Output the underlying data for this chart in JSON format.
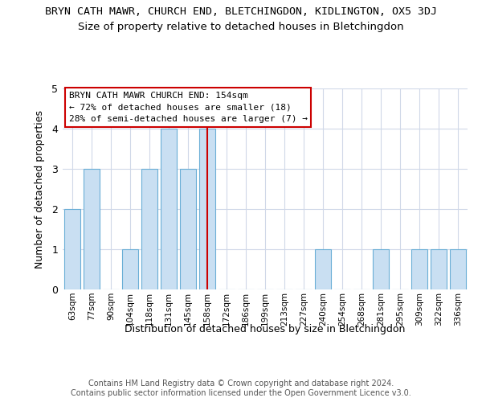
{
  "title": "BRYN CATH MAWR, CHURCH END, BLETCHINGDON, KIDLINGTON, OX5 3DJ",
  "subtitle": "Size of property relative to detached houses in Bletchingdon",
  "xlabel": "Distribution of detached houses by size in Bletchingdon",
  "ylabel": "Number of detached properties",
  "categories": [
    "63sqm",
    "77sqm",
    "90sqm",
    "104sqm",
    "118sqm",
    "131sqm",
    "145sqm",
    "158sqm",
    "172sqm",
    "186sqm",
    "199sqm",
    "213sqm",
    "227sqm",
    "240sqm",
    "254sqm",
    "268sqm",
    "281sqm",
    "295sqm",
    "309sqm",
    "322sqm",
    "336sqm"
  ],
  "values": [
    2,
    3,
    0,
    1,
    3,
    4,
    3,
    4,
    0,
    0,
    0,
    0,
    0,
    1,
    0,
    0,
    1,
    0,
    1,
    1,
    1
  ],
  "bar_color": "#c9dff2",
  "bar_edge_color": "#6aaed6",
  "highlight_index": 7,
  "highlight_line_color": "#cc0000",
  "ylim": [
    0,
    5
  ],
  "yticks": [
    0,
    1,
    2,
    3,
    4,
    5
  ],
  "annotation_box_text": "BRYN CATH MAWR CHURCH END: 154sqm\n← 72% of detached houses are smaller (18)\n28% of semi-detached houses are larger (7) →",
  "annotation_box_color": "#cc0000",
  "footer_text": "Contains HM Land Registry data © Crown copyright and database right 2024.\nContains public sector information licensed under the Open Government Licence v3.0.",
  "background_color": "#ffffff",
  "grid_color": "#d0d8e8",
  "title_fontsize": 9.5,
  "subtitle_fontsize": 9.5,
  "bar_width": 0.85
}
